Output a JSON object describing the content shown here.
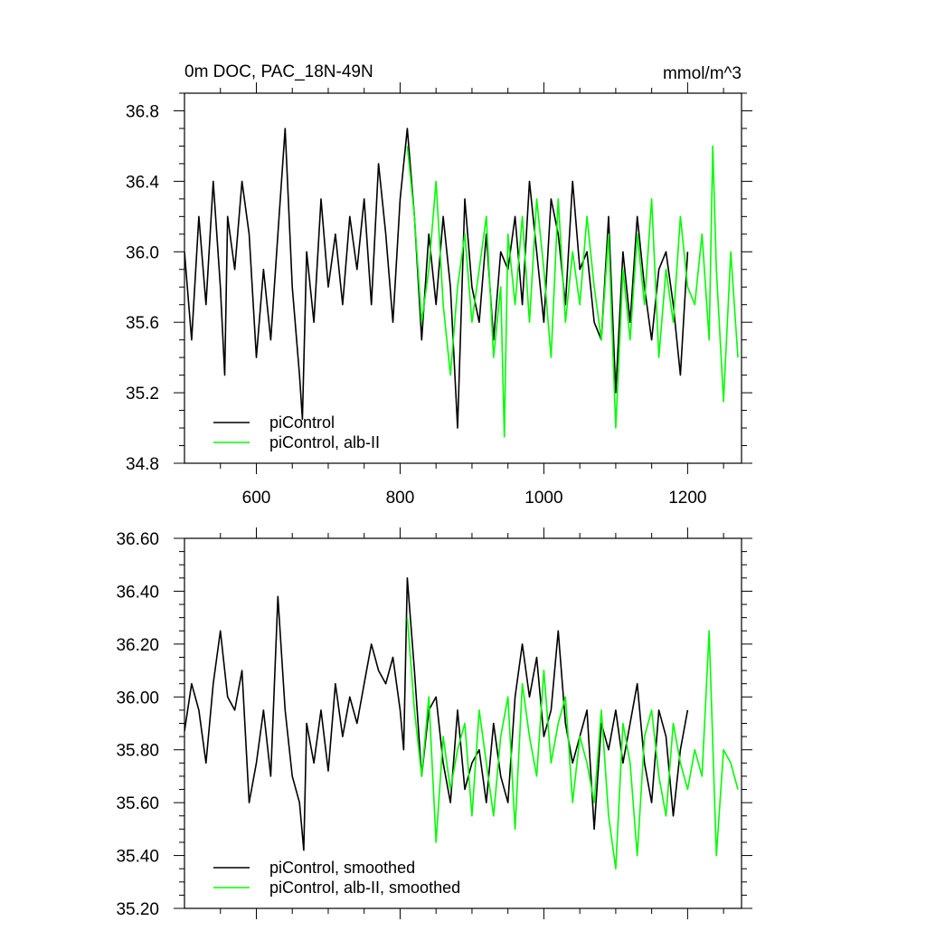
{
  "colors": {
    "pi_control": "#000000",
    "alb_ii": "#00ff00",
    "background": "#ffffff"
  },
  "chart_data": [
    {
      "type": "line",
      "title": "0m DOC, PAC_18N-49N",
      "units": "mmol/m^3",
      "xlim": [
        500,
        1275
      ],
      "ylim": [
        34.8,
        36.9
      ],
      "x_ticks": [
        600,
        800,
        1000,
        1200
      ],
      "x_tick_labels": [
        "600",
        "800",
        "1000",
        "1200"
      ],
      "y_ticks": [
        34.8,
        35.2,
        35.6,
        36.0,
        36.4,
        36.8
      ],
      "y_tick_labels": [
        "34.8",
        "35.2",
        "35.6",
        "36.0",
        "36.4",
        "36.8"
      ],
      "legend_position": "bottom-left",
      "series": [
        {
          "name": "piControl",
          "color": "#000000",
          "x": [
            500,
            510,
            520,
            530,
            540,
            550,
            556,
            560,
            570,
            580,
            590,
            600,
            610,
            620,
            630,
            640,
            650,
            660,
            664,
            670,
            680,
            690,
            700,
            710,
            720,
            730,
            740,
            750,
            760,
            770,
            780,
            790,
            800,
            810,
            820,
            830,
            840,
            850,
            860,
            870,
            880,
            890,
            900,
            910,
            920,
            930,
            940,
            950,
            960,
            970,
            980,
            990,
            1000,
            1010,
            1020,
            1030,
            1040,
            1050,
            1060,
            1070,
            1080,
            1090,
            1100,
            1110,
            1120,
            1130,
            1140,
            1150,
            1160,
            1170,
            1180,
            1190,
            1200
          ],
          "y": [
            36.0,
            35.5,
            36.2,
            35.7,
            36.4,
            35.8,
            35.3,
            36.2,
            35.9,
            36.4,
            36.1,
            35.4,
            35.9,
            35.5,
            36.1,
            36.7,
            35.8,
            35.3,
            35.05,
            36.0,
            35.6,
            36.3,
            35.8,
            36.1,
            35.7,
            36.2,
            35.9,
            36.3,
            35.7,
            36.5,
            36.1,
            35.6,
            36.3,
            36.7,
            36.2,
            35.5,
            36.1,
            35.7,
            36.2,
            35.8,
            35.0,
            36.3,
            35.8,
            35.6,
            36.1,
            35.5,
            36.0,
            35.9,
            36.2,
            35.7,
            36.4,
            36.0,
            35.6,
            36.3,
            36.1,
            35.7,
            36.4,
            35.9,
            36.0,
            35.6,
            35.5,
            36.2,
            35.2,
            36.0,
            35.6,
            36.2,
            35.8,
            35.5,
            35.9,
            36.0,
            35.7,
            35.3,
            36.0
          ]
        },
        {
          "name": "piControl, alb-II",
          "color": "#00ff00",
          "x": [
            810,
            820,
            830,
            840,
            850,
            860,
            870,
            880,
            890,
            900,
            910,
            920,
            930,
            940,
            945,
            950,
            960,
            970,
            980,
            990,
            1000,
            1010,
            1020,
            1030,
            1040,
            1050,
            1060,
            1070,
            1080,
            1090,
            1100,
            1110,
            1120,
            1130,
            1140,
            1150,
            1160,
            1170,
            1180,
            1190,
            1200,
            1210,
            1220,
            1230,
            1235,
            1240,
            1250,
            1260,
            1270
          ],
          "y": [
            36.6,
            36.2,
            35.6,
            35.9,
            36.4,
            35.7,
            35.3,
            35.8,
            36.1,
            35.6,
            35.9,
            36.2,
            35.4,
            35.8,
            34.95,
            36.1,
            35.7,
            36.2,
            35.6,
            36.3,
            35.9,
            35.4,
            36.3,
            35.6,
            36.0,
            35.7,
            36.2,
            35.8,
            35.5,
            36.1,
            35.0,
            35.9,
            35.5,
            36.1,
            35.7,
            36.3,
            35.4,
            35.9,
            35.6,
            36.2,
            35.8,
            35.7,
            36.1,
            35.5,
            36.6,
            35.9,
            35.15,
            36.0,
            35.4
          ]
        }
      ]
    },
    {
      "type": "line",
      "title": "",
      "xlim": [
        500,
        1275
      ],
      "ylim": [
        35.2,
        36.6
      ],
      "x_ticks": [
        600,
        800,
        1000,
        1200
      ],
      "x_tick_labels": [
        "",
        "",
        "",
        ""
      ],
      "y_ticks": [
        35.2,
        35.4,
        35.6,
        35.8,
        36.0,
        36.2,
        36.4,
        36.6
      ],
      "y_tick_labels": [
        "35.20",
        "35.40",
        "35.60",
        "35.80",
        "36.00",
        "36.20",
        "36.40",
        "36.60"
      ],
      "legend_position": "bottom-left",
      "series": [
        {
          "name": "piControl, smoothed",
          "color": "#000000",
          "x": [
            500,
            510,
            520,
            530,
            540,
            550,
            560,
            570,
            580,
            590,
            600,
            610,
            620,
            630,
            640,
            650,
            660,
            666,
            670,
            680,
            690,
            700,
            710,
            720,
            730,
            740,
            750,
            760,
            770,
            780,
            790,
            800,
            805,
            810,
            820,
            830,
            840,
            850,
            860,
            870,
            880,
            890,
            900,
            910,
            920,
            930,
            940,
            950,
            960,
            970,
            980,
            990,
            1000,
            1010,
            1020,
            1030,
            1040,
            1050,
            1060,
            1070,
            1080,
            1090,
            1100,
            1110,
            1120,
            1130,
            1140,
            1150,
            1160,
            1170,
            1180,
            1190,
            1200
          ],
          "y": [
            35.87,
            36.05,
            35.95,
            35.75,
            36.05,
            36.25,
            36.0,
            35.95,
            36.1,
            35.6,
            35.75,
            35.95,
            35.7,
            36.38,
            35.95,
            35.7,
            35.6,
            35.42,
            35.9,
            35.75,
            35.95,
            35.72,
            36.05,
            35.85,
            36.0,
            35.9,
            36.05,
            36.2,
            36.1,
            36.05,
            36.15,
            35.95,
            35.8,
            36.45,
            36.1,
            35.7,
            35.95,
            36.0,
            35.75,
            35.6,
            35.95,
            35.65,
            35.75,
            35.8,
            35.6,
            35.9,
            35.7,
            35.6,
            36.0,
            36.2,
            36.0,
            36.15,
            35.85,
            35.95,
            36.25,
            35.9,
            35.75,
            35.85,
            35.95,
            35.5,
            35.9,
            35.8,
            35.95,
            35.75,
            35.9,
            36.05,
            35.75,
            35.6,
            35.95,
            35.85,
            35.55,
            35.8,
            35.95
          ]
        },
        {
          "name": "piControl, alb-II, smoothed",
          "color": "#00ff00",
          "x": [
            810,
            820,
            830,
            840,
            850,
            860,
            870,
            880,
            890,
            900,
            910,
            920,
            930,
            940,
            950,
            960,
            970,
            980,
            990,
            1000,
            1010,
            1020,
            1030,
            1040,
            1050,
            1060,
            1070,
            1080,
            1090,
            1100,
            1110,
            1120,
            1130,
            1140,
            1150,
            1160,
            1170,
            1180,
            1190,
            1200,
            1210,
            1220,
            1230,
            1240,
            1250,
            1260,
            1270
          ],
          "y": [
            36.3,
            35.95,
            35.7,
            36.0,
            35.45,
            35.85,
            35.65,
            35.8,
            35.9,
            35.55,
            35.95,
            35.75,
            35.55,
            35.85,
            36.0,
            35.5,
            36.05,
            35.85,
            35.7,
            36.1,
            35.75,
            35.9,
            36.0,
            35.6,
            35.85,
            35.75,
            35.6,
            35.95,
            35.55,
            35.35,
            35.9,
            35.75,
            35.4,
            35.85,
            35.95,
            35.7,
            35.55,
            35.9,
            35.75,
            35.65,
            35.8,
            35.7,
            36.25,
            35.4,
            35.8,
            35.75,
            35.65
          ]
        }
      ]
    }
  ]
}
